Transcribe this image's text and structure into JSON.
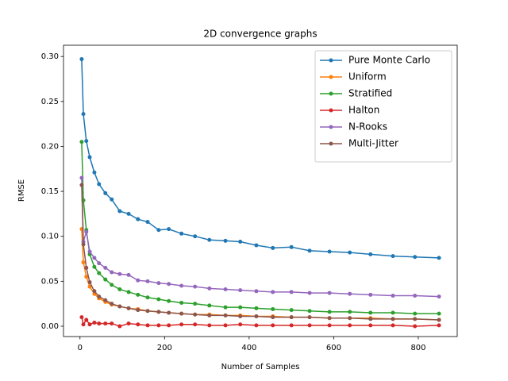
{
  "chart_data": {
    "type": "line",
    "title": "2D convergence graphs",
    "xlabel": "Number of Samples",
    "ylabel": "RMSE",
    "x": [
      4,
      8,
      15,
      23,
      34,
      45,
      60,
      75,
      94,
      115,
      137,
      160,
      186,
      210,
      240,
      272,
      306,
      344,
      379,
      417,
      456,
      500,
      543,
      590,
      638,
      687,
      740,
      792,
      849
    ],
    "series": [
      {
        "name": "Pure Monte Carlo",
        "color": "#1f77b4",
        "values": [
          0.297,
          0.236,
          0.206,
          0.188,
          0.171,
          0.158,
          0.148,
          0.141,
          0.128,
          0.125,
          0.119,
          0.116,
          0.107,
          0.108,
          0.103,
          0.1,
          0.096,
          0.095,
          0.094,
          0.09,
          0.087,
          0.088,
          0.084,
          0.083,
          0.082,
          0.08,
          0.078,
          0.077,
          0.076
        ]
      },
      {
        "name": "Uniform",
        "color": "#ff7f0e",
        "values": [
          0.108,
          0.071,
          0.055,
          0.044,
          0.036,
          0.031,
          0.027,
          0.024,
          0.022,
          0.02,
          0.019,
          0.017,
          0.016,
          0.015,
          0.014,
          0.013,
          0.013,
          0.012,
          0.012,
          0.011,
          0.011,
          0.01,
          0.01,
          0.009,
          0.009,
          0.009,
          0.008,
          0.008,
          0.007
        ]
      },
      {
        "name": "Stratified",
        "color": "#2ca02c",
        "values": [
          0.205,
          0.14,
          0.107,
          0.08,
          0.066,
          0.059,
          0.052,
          0.046,
          0.041,
          0.038,
          0.035,
          0.032,
          0.03,
          0.028,
          0.026,
          0.025,
          0.023,
          0.021,
          0.021,
          0.02,
          0.019,
          0.018,
          0.017,
          0.016,
          0.016,
          0.015,
          0.015,
          0.014,
          0.014
        ]
      },
      {
        "name": "Halton",
        "color": "#d62728",
        "values": [
          0.01,
          0.002,
          0.007,
          0.002,
          0.004,
          0.003,
          0.003,
          0.003,
          0.0,
          0.003,
          0.002,
          0.001,
          0.001,
          0.001,
          0.002,
          0.002,
          0.001,
          0.001,
          0.002,
          0.001,
          0.001,
          0.001,
          0.001,
          0.001,
          0.001,
          0.001,
          0.001,
          0.0,
          0.001
        ]
      },
      {
        "name": "N-Rooks",
        "color": "#9467bd",
        "values": [
          0.165,
          0.094,
          0.105,
          0.083,
          0.076,
          0.07,
          0.065,
          0.06,
          0.058,
          0.057,
          0.051,
          0.05,
          0.048,
          0.047,
          0.045,
          0.044,
          0.042,
          0.041,
          0.04,
          0.039,
          0.038,
          0.038,
          0.037,
          0.037,
          0.036,
          0.035,
          0.034,
          0.034,
          0.033
        ]
      },
      {
        "name": "Multi-Jitter",
        "color": "#8c564b",
        "values": [
          0.157,
          0.091,
          0.065,
          0.049,
          0.039,
          0.033,
          0.029,
          0.025,
          0.022,
          0.02,
          0.018,
          0.017,
          0.016,
          0.015,
          0.014,
          0.013,
          0.012,
          0.012,
          0.011,
          0.011,
          0.01,
          0.01,
          0.01,
          0.009,
          0.009,
          0.008,
          0.008,
          0.008,
          0.007
        ]
      }
    ],
    "xlim": [
      -39,
      892
    ],
    "xticks": [
      0,
      200,
      400,
      600,
      800
    ],
    "ylim": [
      -0.0115,
      0.3125
    ],
    "yticks": [
      {
        "value": 0,
        "label": "0.00"
      },
      0.05,
      {
        "value": 0.1,
        "label": "0.10"
      },
      0.15,
      {
        "value": 0.2,
        "label": "0.20"
      },
      0.25,
      {
        "value": 0.3,
        "label": "0.30"
      }
    ],
    "legend": "upper right",
    "grid": false
  }
}
